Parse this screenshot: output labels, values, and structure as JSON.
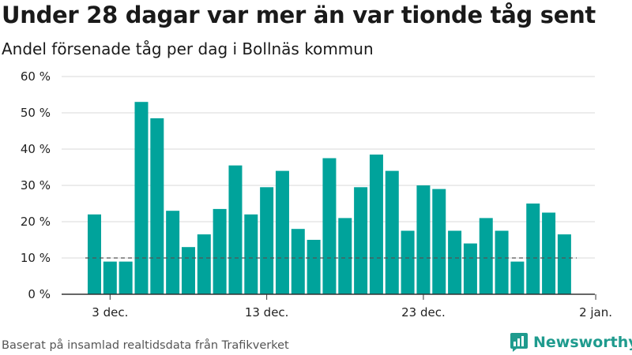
{
  "header": {
    "title": "Under 28 dagar var mer än var tionde tåg sent",
    "subtitle": "Andel försenade tåg per dag i Bollnäs kommun"
  },
  "footer": {
    "source": "Baserat på insamlad realtidsdata från Trafikverket",
    "brand": "Newsworthy"
  },
  "colors": {
    "bar": "#00a39b",
    "brand": "#1f9b8e",
    "grid": "#d8d8d8",
    "reference_line": "#555555"
  },
  "icons": {
    "brand_logo": "newsworthy-chart-bubble-icon"
  },
  "chart_data": {
    "type": "bar",
    "title": "Under 28 dagar var mer än var tionde tåg sent",
    "subtitle": "Andel försenade tåg per dag i Bollnäs kommun",
    "xlabel": "",
    "ylabel": "",
    "categories": [
      "2 dec.",
      "3 dec.",
      "4 dec.",
      "5 dec.",
      "6 dec.",
      "7 dec.",
      "8 dec.",
      "9 dec.",
      "10 dec.",
      "11 dec.",
      "12 dec.",
      "13 dec.",
      "14 dec.",
      "15 dec.",
      "16 dec.",
      "17 dec.",
      "18 dec.",
      "19 dec.",
      "20 dec.",
      "21 dec.",
      "22 dec.",
      "23 dec.",
      "24 dec.",
      "25 dec.",
      "26 dec.",
      "27 dec.",
      "28 dec.",
      "29 dec.",
      "30 dec.",
      "31 dec.",
      "1 jan."
    ],
    "values": [
      22,
      9,
      9,
      53,
      48.5,
      23,
      13,
      16.5,
      23.5,
      35.5,
      22,
      29.5,
      34,
      18,
      15,
      37.5,
      21,
      29.5,
      38.5,
      34,
      17.5,
      30,
      29,
      17.5,
      14,
      21,
      17.5,
      9,
      25,
      22.5,
      16.5
    ],
    "reference_line": 10,
    "ylim": [
      0,
      60
    ],
    "yticks": [
      {
        "value": 0,
        "label": "0 %"
      },
      {
        "value": 10,
        "label": "10 %"
      },
      {
        "value": 20,
        "label": "20 %"
      },
      {
        "value": 30,
        "label": "30 %"
      },
      {
        "value": 40,
        "label": "40 %"
      },
      {
        "value": 50,
        "label": "50 %"
      },
      {
        "value": 60,
        "label": "60 %"
      }
    ],
    "xticks": [
      {
        "label": "3 dec.",
        "index": 1
      },
      {
        "label": "13 dec.",
        "index": 11
      },
      {
        "label": "23 dec.",
        "index": 21
      },
      {
        "label": "2 jan.",
        "index": 32
      }
    ],
    "grid": true,
    "legend": "none"
  }
}
